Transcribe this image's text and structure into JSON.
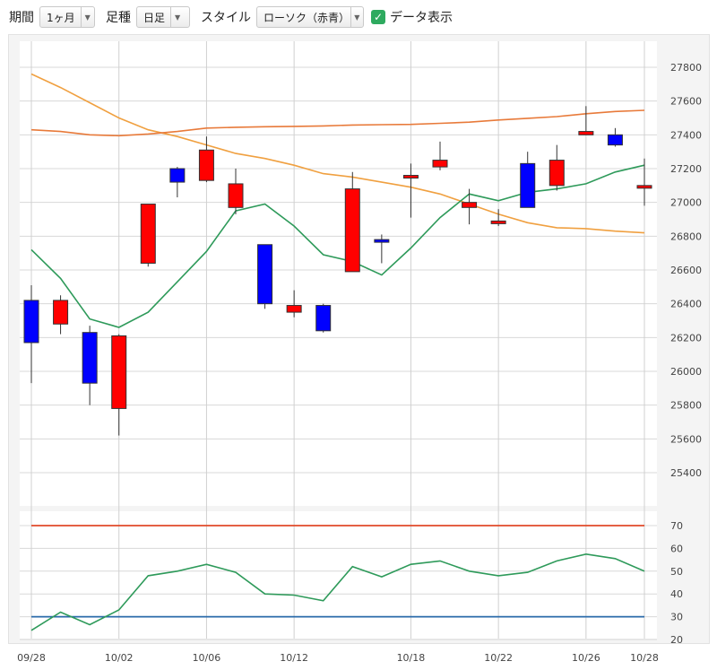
{
  "toolbar": {
    "period_label": "期間",
    "period_value": "1ヶ月",
    "interval_label": "足種",
    "interval_value": "日足",
    "style_label": "スタイル",
    "style_value": "ローソク（赤青）",
    "show_data_label": "データ表示",
    "show_data_checked": true
  },
  "chart_data": [
    {
      "type": "candlestick",
      "title": "",
      "ylim": [
        25240,
        27900
      ],
      "y_ticks": [
        "27800",
        "27600",
        "27400",
        "27200",
        "27000",
        "26800",
        "26600",
        "26400",
        "26200",
        "26000",
        "25800",
        "25600",
        "25400"
      ],
      "x_ticks": [
        "09/28",
        "10/02",
        "10/06",
        "10/12",
        "10/18",
        "10/22",
        "10/26",
        "10/28"
      ],
      "up_color": "#ff0000",
      "down_color": "#0000ff",
      "candles": [
        {
          "open": 26420,
          "high": 26510,
          "low": 25930,
          "close": 26170
        },
        {
          "open": 26280,
          "high": 26450,
          "low": 26220,
          "close": 26420
        },
        {
          "open": 26230,
          "high": 26270,
          "low": 25800,
          "close": 25930
        },
        {
          "open": 25780,
          "high": 26220,
          "low": 25620,
          "close": 26210
        },
        {
          "open": 26640,
          "high": 26990,
          "low": 26620,
          "close": 26990
        },
        {
          "open": 27200,
          "high": 27210,
          "low": 27030,
          "close": 27120
        },
        {
          "open": 27130,
          "high": 27390,
          "low": 27120,
          "close": 27310
        },
        {
          "open": 26970,
          "high": 27200,
          "low": 26930,
          "close": 27110
        },
        {
          "open": 26750,
          "high": 26750,
          "low": 26370,
          "close": 26400
        },
        {
          "open": 26350,
          "high": 26480,
          "low": 26320,
          "close": 26390
        },
        {
          "open": 26390,
          "high": 26400,
          "low": 26230,
          "close": 26240
        },
        {
          "open": 26590,
          "high": 27180,
          "low": 26590,
          "close": 27080
        },
        {
          "open": 26780,
          "high": 26810,
          "low": 26640,
          "close": 26770
        },
        {
          "open": 27150,
          "high": 27230,
          "low": 26910,
          "close": 27160
        },
        {
          "open": 27210,
          "high": 27360,
          "low": 27190,
          "close": 27250
        },
        {
          "open": 26970,
          "high": 27080,
          "low": 26870,
          "close": 27000
        },
        {
          "open": 26880,
          "high": 26960,
          "low": 26860,
          "close": 26890
        },
        {
          "open": 27230,
          "high": 27300,
          "low": 26970,
          "close": 26970
        },
        {
          "open": 27100,
          "high": 27340,
          "low": 27070,
          "close": 27250
        },
        {
          "open": 27400,
          "high": 27570,
          "low": 27400,
          "close": 27420
        },
        {
          "open": 27400,
          "high": 27440,
          "low": 27330,
          "close": 27340
        },
        {
          "open": 27090,
          "high": 27260,
          "low": 26980,
          "close": 27100
        }
      ],
      "moving_averages": [
        {
          "color": "#f0a040",
          "values": [
            27760,
            27680,
            27590,
            27500,
            27430,
            27390,
            27340,
            27290,
            27260,
            27220,
            27170,
            27150,
            27120,
            27090,
            27050,
            26990,
            26930,
            26880,
            26850,
            26845,
            26830,
            26820
          ]
        },
        {
          "color": "#e87a3a",
          "values": [
            27430,
            27420,
            27400,
            27395,
            27405,
            27420,
            27440,
            27445,
            27448,
            27450,
            27453,
            27458,
            27460,
            27462,
            27468,
            27475,
            27488,
            27498,
            27508,
            27525,
            27538,
            27545
          ]
        },
        {
          "color": "#2e9a5a",
          "values": [
            26720,
            26550,
            26310,
            26260,
            26350,
            26530,
            26710,
            26950,
            26990,
            26860,
            26690,
            26650,
            26570,
            26730,
            26910,
            27050,
            27010,
            27060,
            27080,
            27110,
            27180,
            27220
          ]
        }
      ]
    },
    {
      "type": "line",
      "title": "",
      "ylim": [
        19,
        77
      ],
      "y_ticks": [
        "70",
        "60",
        "50",
        "40",
        "30",
        "20"
      ],
      "series": [
        {
          "color": "#2e9a5a",
          "values": [
            24,
            32,
            26.5,
            33,
            48,
            50,
            53,
            49.5,
            40,
            39.5,
            37,
            52,
            47.5,
            53,
            54.5,
            50,
            48,
            49.5,
            54.5,
            57.5,
            55.5,
            50
          ]
        }
      ],
      "reference_lines": [
        {
          "value": 70,
          "color": "#e04a2a"
        },
        {
          "value": 30,
          "color": "#2a6aaa"
        }
      ]
    }
  ]
}
